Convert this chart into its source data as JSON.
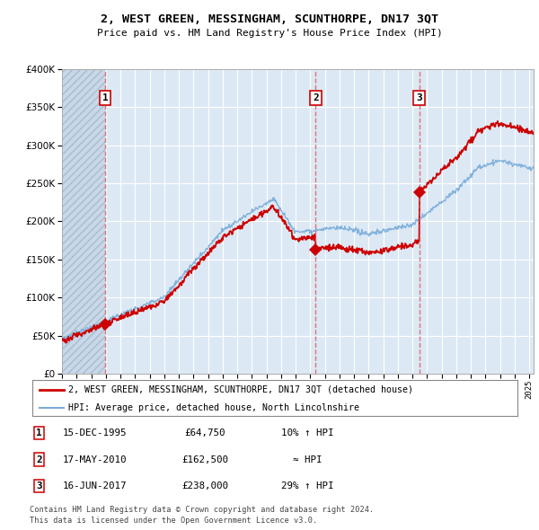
{
  "title": "2, WEST GREEN, MESSINGHAM, SCUNTHORPE, DN17 3QT",
  "subtitle": "Price paid vs. HM Land Registry's House Price Index (HPI)",
  "sale_dates_str": [
    "15-DEC-1995",
    "17-MAY-2010",
    "16-JUN-2017"
  ],
  "sale_prices": [
    64750,
    162500,
    238000
  ],
  "sale_labels": [
    "1",
    "2",
    "3"
  ],
  "sale_years": [
    1995.96,
    2010.38,
    2017.46
  ],
  "legend_line1": "2, WEST GREEN, MESSINGHAM, SCUNTHORPE, DN17 3QT (detached house)",
  "legend_line2": "HPI: Average price, detached house, North Lincolnshire",
  "table_data": [
    [
      "1",
      "15-DEC-1995",
      "£64,750",
      "10% ↑ HPI"
    ],
    [
      "2",
      "17-MAY-2010",
      "£162,500",
      "≈ HPI"
    ],
    [
      "3",
      "16-JUN-2017",
      "£238,000",
      "29% ↑ HPI"
    ]
  ],
  "footnote1": "Contains HM Land Registry data © Crown copyright and database right 2024.",
  "footnote2": "This data is licensed under the Open Government Licence v3.0.",
  "ylim": [
    0,
    400000
  ],
  "xlim_start": 1993.0,
  "xlim_end": 2025.3,
  "hatch_end_year": 1995.96,
  "bg_color": "#dce9f5",
  "hatch_face_color": "#c8d8e8",
  "red_line_color": "#cc0000",
  "blue_line_color": "#7aacda",
  "grid_color": "#ffffff",
  "sale_marker_color": "#cc0000",
  "label_box_edge_color": "#cc0000",
  "vline_color": "#dd6666"
}
